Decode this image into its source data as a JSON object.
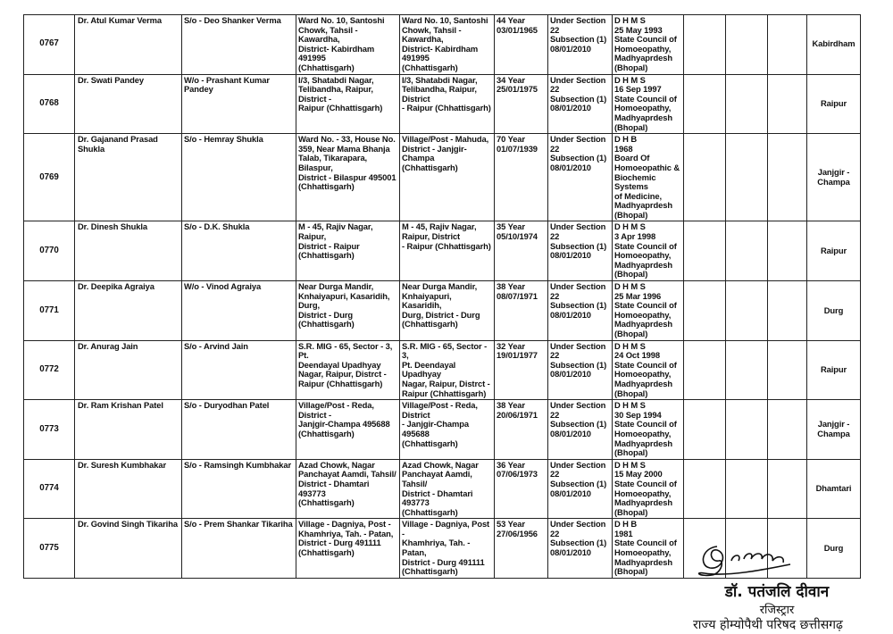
{
  "rows": [
    {
      "no": "0767",
      "name": "Dr. Atul Kumar Verma",
      "relation": "S/o - Deo Shanker Verma",
      "address1": "Ward No. 10, Santoshi\nChowk,  Tahsil - Kawardha,\nDistrict- Kabirdham 491995\n(Chhattisgarh)",
      "address2": "Ward No. 10, Santoshi\nChowk,  Tahsil - Kawardha,\nDistrict- Kabirdham 491995\n(Chhattisgarh)",
      "age": "44 Year\n03/01/1965",
      "section": "Under Section 22\nSubsection (1)\n08/01/2010",
      "qualification": "D H M S\n25 May 1993\nState Council of\nHomoeopathy,\nMadhyaprdesh\n(Bhopal)",
      "district": "Kabirdham"
    },
    {
      "no": "0768",
      "name": "Dr. Swati Pandey",
      "relation": "W/o - Prashant Kumar Pandey",
      "address1": "I/3, Shatabdi Nagar,\nTelibandha,  Raipur, District -\nRaipur (Chhattisgarh)",
      "address2": "I/3, Shatabdi Nagar,\nTelibandha,  Raipur, District\n- Raipur (Chhattisgarh)",
      "age": "34 Year\n25/01/1975",
      "section": "Under Section 22\nSubsection (1)\n08/01/2010",
      "qualification": "D H M S\n16 Sep 1997\nState Council of\nHomoeopathy,\nMadhyaprdesh\n(Bhopal)",
      "district": "Raipur"
    },
    {
      "no": "0769",
      "name": "Dr. Gajanand Prasad Shukla",
      "relation": "S/o - Hemray Shukla",
      "address1": "Ward No. - 33, House No.\n359, Near Mama Bhanja\nTalab, Tikarapara, Bilaspur,\nDistrict - Bilaspur  495001\n(Chhattisgarh)",
      "address2": "Village/Post - Mahuda,\nDistrict - Janjgir-Champa\n(Chhattisgarh)",
      "age": "70 Year\n01/07/1939",
      "section": "Under Section 22\nSubsection (1)\n08/01/2010",
      "qualification": "D H B\n1968\nBoard Of\nHomoeopathic &\nBiochemic Systems\nof Medicine,\nMadhyaprdesh\n(Bhopal)",
      "district": "Janjgir -\nChampa"
    },
    {
      "no": "0770",
      "name": "Dr. Dinesh Shukla",
      "relation": "S/o - D.K. Shukla",
      "address1": "M - 45,  Rajiv Nagar,  Raipur,\nDistrict - Raipur\n(Chhattisgarh)",
      "address2": "M - 45,  Rajiv Nagar,\nRaipur,                District\n- Raipur (Chhattisgarh)",
      "age": "35 Year\n05/10/1974",
      "section": "Under Section 22\nSubsection (1)\n08/01/2010",
      "qualification": "D H M S\n3 Apr 1998\nState Council of\nHomoeopathy,\nMadhyaprdesh\n(Bhopal)",
      "district": "Raipur"
    },
    {
      "no": "0771",
      "name": "Dr. Deepika Agraiya",
      "relation": "W/o - Vinod Agraiya",
      "address1": "Near Durga Mandir,\nKnhaiyapuri, Kasaridih, Durg,\nDistrict - Durg (Chhattisgarh)",
      "address2": "Near Durga Mandir,\nKnhaiyapuri, Kasaridih,\nDurg, District - Durg\n(Chhattisgarh)",
      "age": "38 Year\n08/07/1971",
      "section": "Under Section 22\nSubsection (1)\n08/01/2010",
      "qualification": "D H M S\n25 Mar 1996\nState Council of\nHomoeopathy,\nMadhyaprdesh\n(Bhopal)",
      "district": "Durg"
    },
    {
      "no": "0772",
      "name": "Dr. Anurag Jain",
      "relation": "S/o  - Arvind Jain",
      "address1": "S.R. MIG - 65, Sector - 3, Pt.\nDeendayal  Upadhyay\nNagar, Raipur, Distrct -\nRaipur (Chhattisgarh)",
      "address2": "S.R. MIG - 65, Sector - 3,\nPt. Deendayal  Upadhyay\nNagar, Raipur, Distrct -\nRaipur (Chhattisgarh)",
      "age": "32 Year\n19/01/1977",
      "section": "Under Section 22\nSubsection (1)\n08/01/2010",
      "qualification": "D H M S\n24 Oct 1998\nState Council of\nHomoeopathy,\nMadhyaprdesh\n(Bhopal)",
      "district": "Raipur"
    },
    {
      "no": "0773",
      "name": "Dr. Ram Krishan Patel",
      "relation": "S/o - Duryodhan Patel",
      "address1": "Village/Post - Reda, District -\nJanjgir-Champa 495688\n(Chhattisgarh)",
      "address2": "Village/Post - Reda, District\n- Janjgir-Champa 495688\n(Chhattisgarh)",
      "age": "38 Year\n20/06/1971",
      "section": "Under Section 22\nSubsection (1)\n08/01/2010",
      "qualification": "D H M S\n30 Sep 1994\nState Council of\nHomoeopathy,\nMadhyaprdesh\n(Bhopal)",
      "district": "Janjgir -\nChampa"
    },
    {
      "no": "0774",
      "name": "Dr. Suresh Kumbhakar",
      "relation": "S/o - Ramsingh Kumbhakar",
      "address1": "Azad Chowk,  Nagar\nPanchayat  Aamdi, Tahsil/\nDistrict - Dhamtari  493773\n(Chhattisgarh)",
      "address2": "Azad Chowk,  Nagar\nPanchayat  Aamdi, Tahsil/\nDistrict - Dhamtari  493773\n(Chhattisgarh)",
      "age": "36 Year\n07/06/1973",
      "section": "Under Section 22\nSubsection (1)\n08/01/2010",
      "qualification": "D H M S\n15 May 2000\nState Council of\nHomoeopathy,\nMadhyaprdesh\n(Bhopal)",
      "district": "Dhamtari"
    },
    {
      "no": "0775",
      "name": "Dr. Govind Singh Tikariha",
      "relation": "S/o - Prem Shankar Tikariha",
      "address1": "Village - Dagniya, Post -\nKhamhriya, Tah. - Patan,\nDistrict - Durg 491111\n(Chhattisgarh)",
      "address2": "Village - Dagniya, Post -\nKhamhriya, Tah. - Patan,\nDistrict - Durg 491111\n(Chhattisgarh)",
      "age": "53 Year\n27/06/1956",
      "section": "Under Section 22\nSubsection (1)\n08/01/2010",
      "qualification": "D H B\n1981\nState Council of\nHomoeopathy,\nMadhyaprdesh\n(Bhopal)",
      "district": "Durg"
    }
  ],
  "signature": {
    "name": "डॉ. पतंजलि दीवान",
    "designation": "रजिस्ट्रार",
    "organization": "राज्य होम्योपैथी परिषद छत्तीसगढ़"
  }
}
